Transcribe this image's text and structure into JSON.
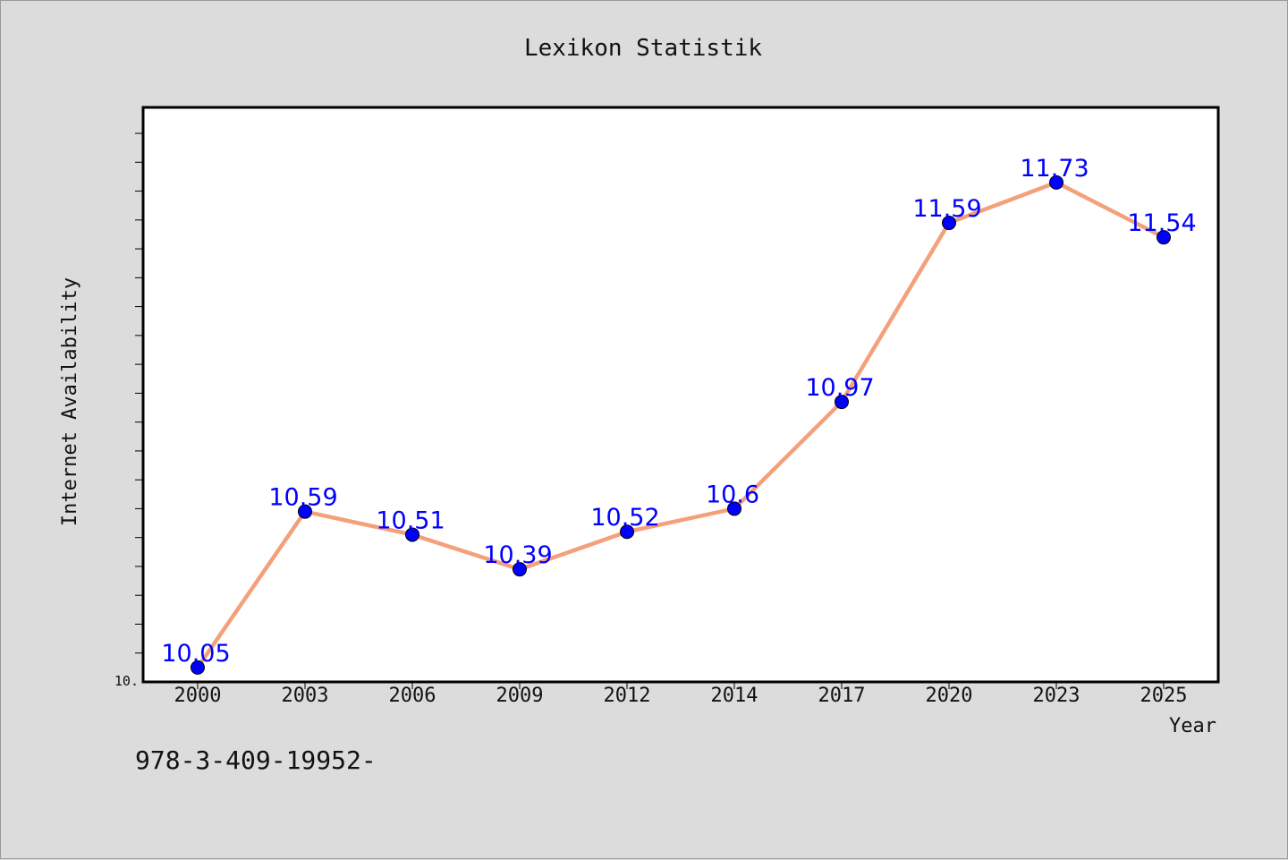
{
  "colors": {
    "background": "#dcdcdc",
    "plot_background": "#ffffff",
    "line": "#f4a07a",
    "marker": "#0000ff",
    "data_label": "#0000ff",
    "axis": "#000000"
  },
  "footnote": "978-3-409-19952-",
  "chart_data": {
    "type": "line",
    "title": "Lexikon Statistik",
    "xlabel": "Year",
    "ylabel": "Internet Availability",
    "categories": [
      "2000",
      "2003",
      "2006",
      "2009",
      "2012",
      "2014",
      "2017",
      "2020",
      "2023",
      "2025"
    ],
    "series": [
      {
        "values": [
          10.05,
          10.59,
          10.51,
          10.39,
          10.52,
          10.6,
          10.97,
          11.59,
          11.73,
          11.54
        ],
        "data_labels": [
          "10.05",
          "10.59",
          "10.51",
          "10.39",
          "10.52",
          "10.6",
          "10.97",
          "11.59",
          "11.73",
          "11.54"
        ]
      }
    ],
    "y_min_label": "10.",
    "ylim": [
      10.0,
      11.99
    ],
    "y_minor_tick_step": 0.1,
    "grid": false,
    "legend": "none"
  }
}
